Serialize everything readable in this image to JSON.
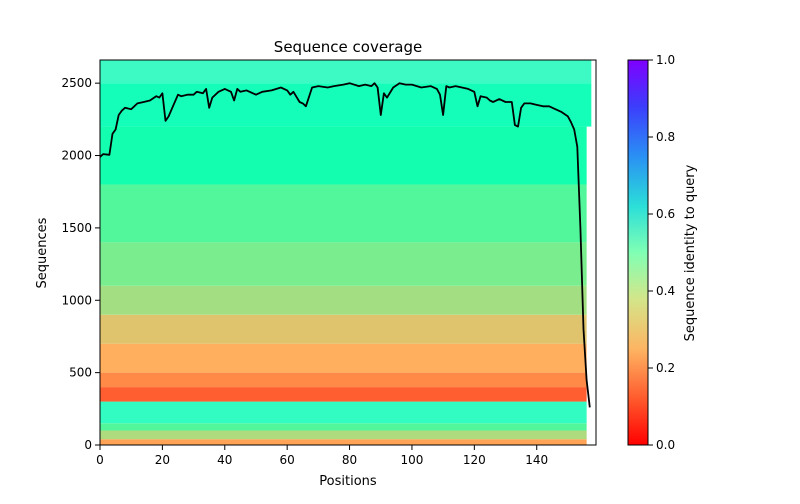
{
  "chart_data": {
    "type": "heatmap",
    "title": "Sequence coverage",
    "xlabel": "Positions",
    "ylabel": "Sequences",
    "xlim": [
      0,
      159
    ],
    "ylim": [
      0,
      2660
    ],
    "xticks": [
      "0",
      "20",
      "40",
      "60",
      "80",
      "100",
      "120",
      "140"
    ],
    "yticks": [
      "0",
      "500",
      "1000",
      "1500",
      "2000",
      "2500"
    ],
    "colorbar": {
      "label": "Sequence identity to query",
      "range": [
        0.0,
        1.0
      ],
      "ticks": [
        "0.0",
        "0.2",
        "0.4",
        "0.6",
        "0.8",
        "1.0"
      ],
      "colormap": "rainbow_r"
    },
    "identity_bands": [
      {
        "from": 0,
        "to": 40,
        "identity": 0.22
      },
      {
        "from": 40,
        "to": 100,
        "identity": 0.33
      },
      {
        "from": 100,
        "to": 150,
        "identity": 0.42
      },
      {
        "from": 150,
        "to": 300,
        "identity": 0.55
      },
      {
        "from": 300,
        "to": 400,
        "identity": 0.12
      },
      {
        "from": 400,
        "to": 500,
        "identity": 0.18
      },
      {
        "from": 500,
        "to": 700,
        "identity": 0.24
      },
      {
        "from": 700,
        "to": 900,
        "identity": 0.28
      },
      {
        "from": 900,
        "to": 1100,
        "identity": 0.34
      },
      {
        "from": 1100,
        "to": 1400,
        "identity": 0.38
      },
      {
        "from": 1400,
        "to": 1800,
        "identity": 0.42
      },
      {
        "from": 1800,
        "to": 2200,
        "identity": 0.48
      },
      {
        "from": 2200,
        "to": 2500,
        "identity": 0.52
      },
      {
        "from": 2500,
        "to": 2660,
        "identity": 0.56
      }
    ],
    "coverage_series": {
      "color": "#000000",
      "x": [
        0,
        1,
        3,
        4,
        5,
        6,
        7,
        8,
        10,
        12,
        14,
        16,
        18,
        19,
        20,
        21,
        22,
        23,
        25,
        26,
        28,
        30,
        31,
        33,
        34,
        35,
        36,
        38,
        40,
        42,
        43,
        44,
        45,
        47,
        50,
        52,
        55,
        58,
        60,
        61,
        62,
        64,
        65,
        66,
        68,
        70,
        73,
        75,
        78,
        80,
        83,
        85,
        87,
        88,
        89,
        90,
        91,
        92,
        94,
        96,
        98,
        100,
        103,
        106,
        108,
        109,
        110,
        111,
        112,
        114,
        116,
        118,
        120,
        121,
        122,
        124,
        125,
        126,
        128,
        130,
        132,
        133,
        134,
        135,
        136,
        138,
        140,
        142,
        144,
        146,
        148,
        150,
        151,
        152,
        153,
        154,
        155,
        156,
        157
      ],
      "y": [
        1990,
        2010,
        2005,
        2150,
        2180,
        2280,
        2310,
        2330,
        2320,
        2360,
        2370,
        2380,
        2410,
        2400,
        2430,
        2240,
        2270,
        2320,
        2420,
        2410,
        2420,
        2420,
        2440,
        2430,
        2460,
        2330,
        2400,
        2440,
        2460,
        2440,
        2380,
        2460,
        2440,
        2450,
        2420,
        2440,
        2450,
        2470,
        2450,
        2420,
        2440,
        2370,
        2360,
        2340,
        2470,
        2480,
        2470,
        2480,
        2490,
        2500,
        2480,
        2490,
        2480,
        2500,
        2470,
        2280,
        2430,
        2400,
        2470,
        2500,
        2490,
        2490,
        2470,
        2480,
        2460,
        2420,
        2280,
        2480,
        2470,
        2480,
        2470,
        2460,
        2440,
        2340,
        2410,
        2400,
        2380,
        2370,
        2390,
        2370,
        2370,
        2210,
        2200,
        2330,
        2360,
        2360,
        2350,
        2340,
        2340,
        2320,
        2300,
        2270,
        2230,
        2180,
        2060,
        1500,
        800,
        450,
        260
      ]
    }
  }
}
